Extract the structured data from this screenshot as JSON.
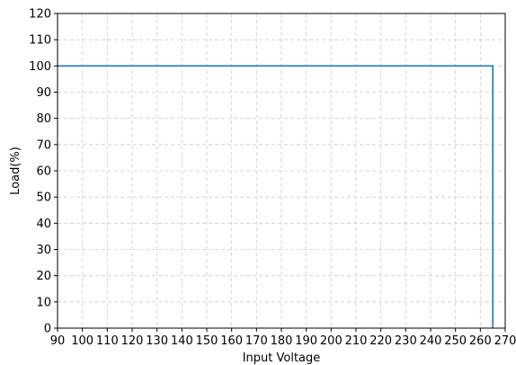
{
  "chart_data": {
    "type": "line",
    "xlabel": "Input Voltage",
    "ylabel": "Load(%)",
    "xlim": [
      90,
      270
    ],
    "ylim": [
      0,
      120
    ],
    "x_ticks": [
      90,
      100,
      110,
      120,
      130,
      140,
      150,
      160,
      170,
      180,
      190,
      200,
      210,
      220,
      230,
      240,
      250,
      260,
      270
    ],
    "y_ticks": [
      0,
      10,
      20,
      30,
      40,
      50,
      60,
      70,
      80,
      90,
      100,
      110,
      120
    ],
    "grid": true,
    "series": [
      {
        "color": "#1f77b4",
        "x": [
          90,
          265,
          265
        ],
        "y": [
          100,
          100,
          0
        ]
      }
    ]
  }
}
